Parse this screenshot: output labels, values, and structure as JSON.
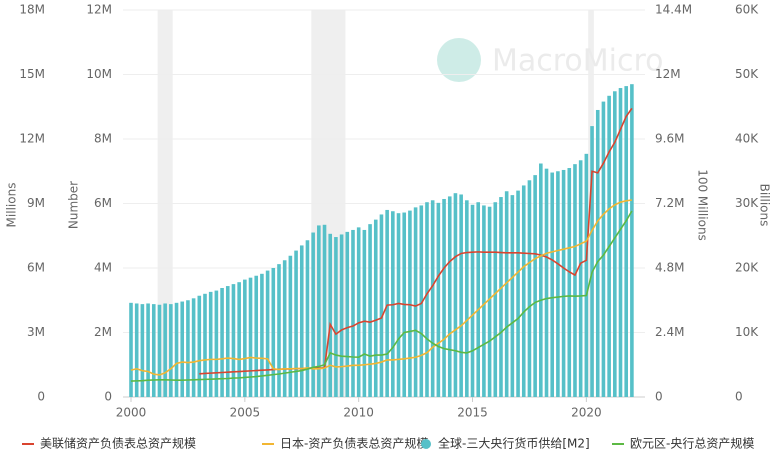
{
  "chart_data": {
    "type": "combo",
    "watermark": "MacroMicro",
    "ylabel": "Millions",
    "ylim": [
      0,
      18000000
    ],
    "yticks": [
      0,
      {
        "value": 3000000,
        "label": "3M"
      },
      {
        "value": 6000000,
        "label": "6M"
      },
      {
        "value": 9000000,
        "label": "9M"
      },
      {
        "value": 12000000,
        "label": "12M"
      },
      {
        "value": 15000000,
        "label": "15M"
      },
      {
        "value": 18000000,
        "label": "18M"
      }
    ],
    "y2label": "Number",
    "y2lim": [
      0,
      12000000
    ],
    "y2ticks": [
      0,
      {
        "value": 2000000,
        "label": "2M"
      },
      {
        "value": 4000000,
        "label": "4M"
      },
      {
        "value": 6000000,
        "label": "6M"
      },
      {
        "value": 8000000,
        "label": "8M"
      },
      {
        "value": 10000000,
        "label": "10M"
      },
      {
        "value": 12000000,
        "label": "12M"
      }
    ],
    "y3label": "100 Millions",
    "y3lim": [
      0,
      14400000
    ],
    "y3ticks": [
      0,
      {
        "value": 2400000,
        "label": "2.4M"
      },
      {
        "value": 4800000,
        "label": "4.8M"
      },
      {
        "value": 7200000,
        "label": "7.2M"
      },
      {
        "value": 9600000,
        "label": "9.6M"
      },
      {
        "value": 12000000,
        "label": "12M"
      },
      {
        "value": 14400000,
        "label": "14.4M"
      }
    ],
    "y4label": "Billions",
    "y4lim": [
      0,
      60000
    ],
    "y4ticks": [
      0,
      {
        "value": 10000,
        "label": "10K"
      },
      {
        "value": 20000,
        "label": "20K"
      },
      {
        "value": 30000,
        "label": "30K"
      },
      {
        "value": 40000,
        "label": "40K"
      },
      {
        "value": 50000,
        "label": "50K"
      },
      {
        "value": 60000,
        "label": "60K"
      }
    ],
    "xlim": [
      2000,
      2022.4
    ],
    "xticks": [
      2000,
      2005,
      2010,
      2015,
      2020
    ],
    "grid": true,
    "legend": "bottom",
    "recessions": [
      [
        2001.17,
        2001.83
      ],
      [
        2007.92,
        2009.42
      ],
      [
        2020.08,
        2020.33
      ]
    ],
    "x": [
      2000,
      2000.25,
      2000.5,
      2000.75,
      2001,
      2001.25,
      2001.5,
      2001.75,
      2002,
      2002.25,
      2002.5,
      2002.75,
      2003,
      2003.25,
      2003.5,
      2003.75,
      2004,
      2004.25,
      2004.5,
      2004.75,
      2005,
      2005.25,
      2005.5,
      2005.75,
      2006,
      2006.25,
      2006.5,
      2006.75,
      2007,
      2007.25,
      2007.5,
      2007.75,
      2008,
      2008.25,
      2008.5,
      2008.75,
      2009,
      2009.25,
      2009.5,
      2009.75,
      2010,
      2010.25,
      2010.5,
      2010.75,
      2011,
      2011.25,
      2011.5,
      2011.75,
      2012,
      2012.25,
      2012.5,
      2012.75,
      2013,
      2013.25,
      2013.5,
      2013.75,
      2014,
      2014.25,
      2014.5,
      2014.75,
      2015,
      2015.25,
      2015.5,
      2015.75,
      2016,
      2016.25,
      2016.5,
      2016.75,
      2017,
      2017.25,
      2017.5,
      2017.75,
      2018,
      2018.25,
      2018.5,
      2018.75,
      2019,
      2019.25,
      2019.5,
      2019.75,
      2020,
      2020.25,
      2020.5,
      2020.75,
      2021,
      2021.25,
      2021.5,
      2021.75,
      2022
    ],
    "series": [
      {
        "name": "美联储资产负债表总资产规模",
        "type": "line",
        "axis": "y2",
        "color": "#d9442f",
        "values": [
          null,
          null,
          null,
          null,
          null,
          null,
          null,
          null,
          null,
          null,
          null,
          null,
          720000,
          730000,
          740000,
          750000,
          760000,
          770000,
          780000,
          790000,
          800000,
          810000,
          820000,
          830000,
          840000,
          850000,
          860000,
          870000,
          870000,
          880000,
          880000,
          890000,
          900000,
          890000,
          910000,
          2250000,
          1950000,
          2080000,
          2150000,
          2200000,
          2300000,
          2350000,
          2320000,
          2380000,
          2450000,
          2850000,
          2860000,
          2900000,
          2870000,
          2860000,
          2820000,
          2900000,
          3200000,
          3450000,
          3750000,
          4000000,
          4200000,
          4350000,
          4450000,
          4480000,
          4490000,
          4500000,
          4490000,
          4490000,
          4490000,
          4480000,
          4470000,
          4470000,
          4470000,
          4460000,
          4450000,
          4440000,
          4400000,
          4340000,
          4250000,
          4130000,
          4000000,
          3880000,
          3780000,
          4150000,
          4240000,
          7000000,
          6950000,
          7250000,
          7600000,
          7900000,
          8300000,
          8700000,
          8950000
        ]
      },
      {
        "name": "日本-资产负债表总资产规模",
        "type": "line",
        "axis": "y3",
        "color": "#f2b632",
        "values": [
          1000000,
          1050000,
          980000,
          950000,
          850000,
          820000,
          900000,
          1050000,
          1250000,
          1300000,
          1280000,
          1300000,
          1350000,
          1380000,
          1400000,
          1400000,
          1420000,
          1450000,
          1430000,
          1400000,
          1430000,
          1470000,
          1450000,
          1440000,
          1420000,
          1050000,
          1020000,
          1050000,
          1050000,
          1060000,
          1060000,
          1080000,
          1050000,
          1050000,
          1080000,
          1180000,
          1120000,
          1130000,
          1150000,
          1180000,
          1180000,
          1200000,
          1220000,
          1250000,
          1300000,
          1380000,
          1380000,
          1400000,
          1420000,
          1450000,
          1480000,
          1550000,
          1650000,
          1850000,
          2000000,
          2150000,
          2350000,
          2500000,
          2650000,
          2850000,
          3050000,
          3250000,
          3450000,
          3650000,
          3850000,
          4050000,
          4250000,
          4450000,
          4650000,
          4850000,
          5000000,
          5150000,
          5250000,
          5350000,
          5400000,
          5450000,
          5500000,
          5550000,
          5600000,
          5700000,
          5800000,
          6200000,
          6550000,
          6800000,
          7000000,
          7150000,
          7250000,
          7300000,
          7330000
        ]
      },
      {
        "name": "全球-三大央行货币供给[M2]",
        "type": "bar",
        "axis": "y4",
        "color": "#56c0c8",
        "values": [
          14600,
          14500,
          14400,
          14500,
          14400,
          14300,
          14500,
          14400,
          14600,
          14800,
          15000,
          15300,
          15700,
          16000,
          16300,
          16500,
          16900,
          17200,
          17500,
          17800,
          18200,
          18500,
          18800,
          19100,
          19600,
          20000,
          20600,
          21200,
          21900,
          22700,
          23500,
          24300,
          25500,
          26600,
          26700,
          25300,
          24800,
          25200,
          25600,
          25900,
          26300,
          25900,
          26800,
          27500,
          28300,
          29000,
          28800,
          28500,
          28600,
          28900,
          29400,
          29700,
          30200,
          30500,
          30100,
          30700,
          31100,
          31600,
          31400,
          30500,
          29800,
          30200,
          29700,
          29500,
          30200,
          31000,
          31900,
          31300,
          32000,
          32800,
          33600,
          34400,
          36200,
          35400,
          34800,
          35000,
          35200,
          35500,
          36100,
          36700,
          37700,
          42000,
          44500,
          45800,
          46700,
          47400,
          47900,
          48200,
          48500
        ]
      },
      {
        "name": "欧元区-央行总资产规模",
        "type": "line",
        "axis": "y",
        "color": "#5cb944",
        "values": [
          740000,
          750000,
          760000,
          780000,
          790000,
          800000,
          800000,
          790000,
          780000,
          780000,
          790000,
          800000,
          810000,
          820000,
          830000,
          840000,
          850000,
          860000,
          880000,
          890000,
          910000,
          930000,
          950000,
          980000,
          1010000,
          1040000,
          1070000,
          1110000,
          1150000,
          1190000,
          1230000,
          1300000,
          1380000,
          1420000,
          1500000,
          2050000,
          1950000,
          1900000,
          1880000,
          1860000,
          1850000,
          2000000,
          1900000,
          1950000,
          1950000,
          2000000,
          2300000,
          2700000,
          3000000,
          3050000,
          3100000,
          2950000,
          2700000,
          2500000,
          2350000,
          2250000,
          2200000,
          2150000,
          2080000,
          2050000,
          2150000,
          2300000,
          2450000,
          2600000,
          2800000,
          3000000,
          3250000,
          3450000,
          3650000,
          3950000,
          4200000,
          4400000,
          4500000,
          4580000,
          4620000,
          4650000,
          4680000,
          4700000,
          4690000,
          4700000,
          4720000,
          5800000,
          6300000,
          6600000,
          7000000,
          7400000,
          7800000,
          8200000,
          8650000
        ]
      }
    ]
  }
}
